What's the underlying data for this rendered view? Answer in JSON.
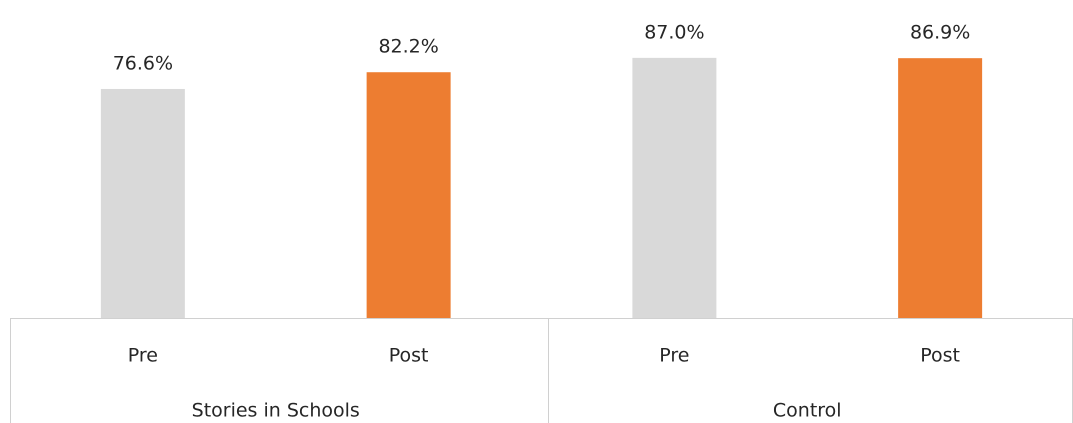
{
  "chart_data": {
    "type": "bar",
    "categories": [
      "Pre",
      "Post",
      "Pre",
      "Post"
    ],
    "groups": [
      "Stories in Schools",
      "Control"
    ],
    "values": [
      76.6,
      82.2,
      87.0,
      86.9
    ],
    "value_labels": [
      "76.6%",
      "82.2%",
      "87.0%",
      "86.9%"
    ],
    "colors": [
      "#d9d9d9",
      "#ed7d31",
      "#d9d9d9",
      "#ed7d31"
    ],
    "ylim": [
      0,
      100
    ]
  }
}
